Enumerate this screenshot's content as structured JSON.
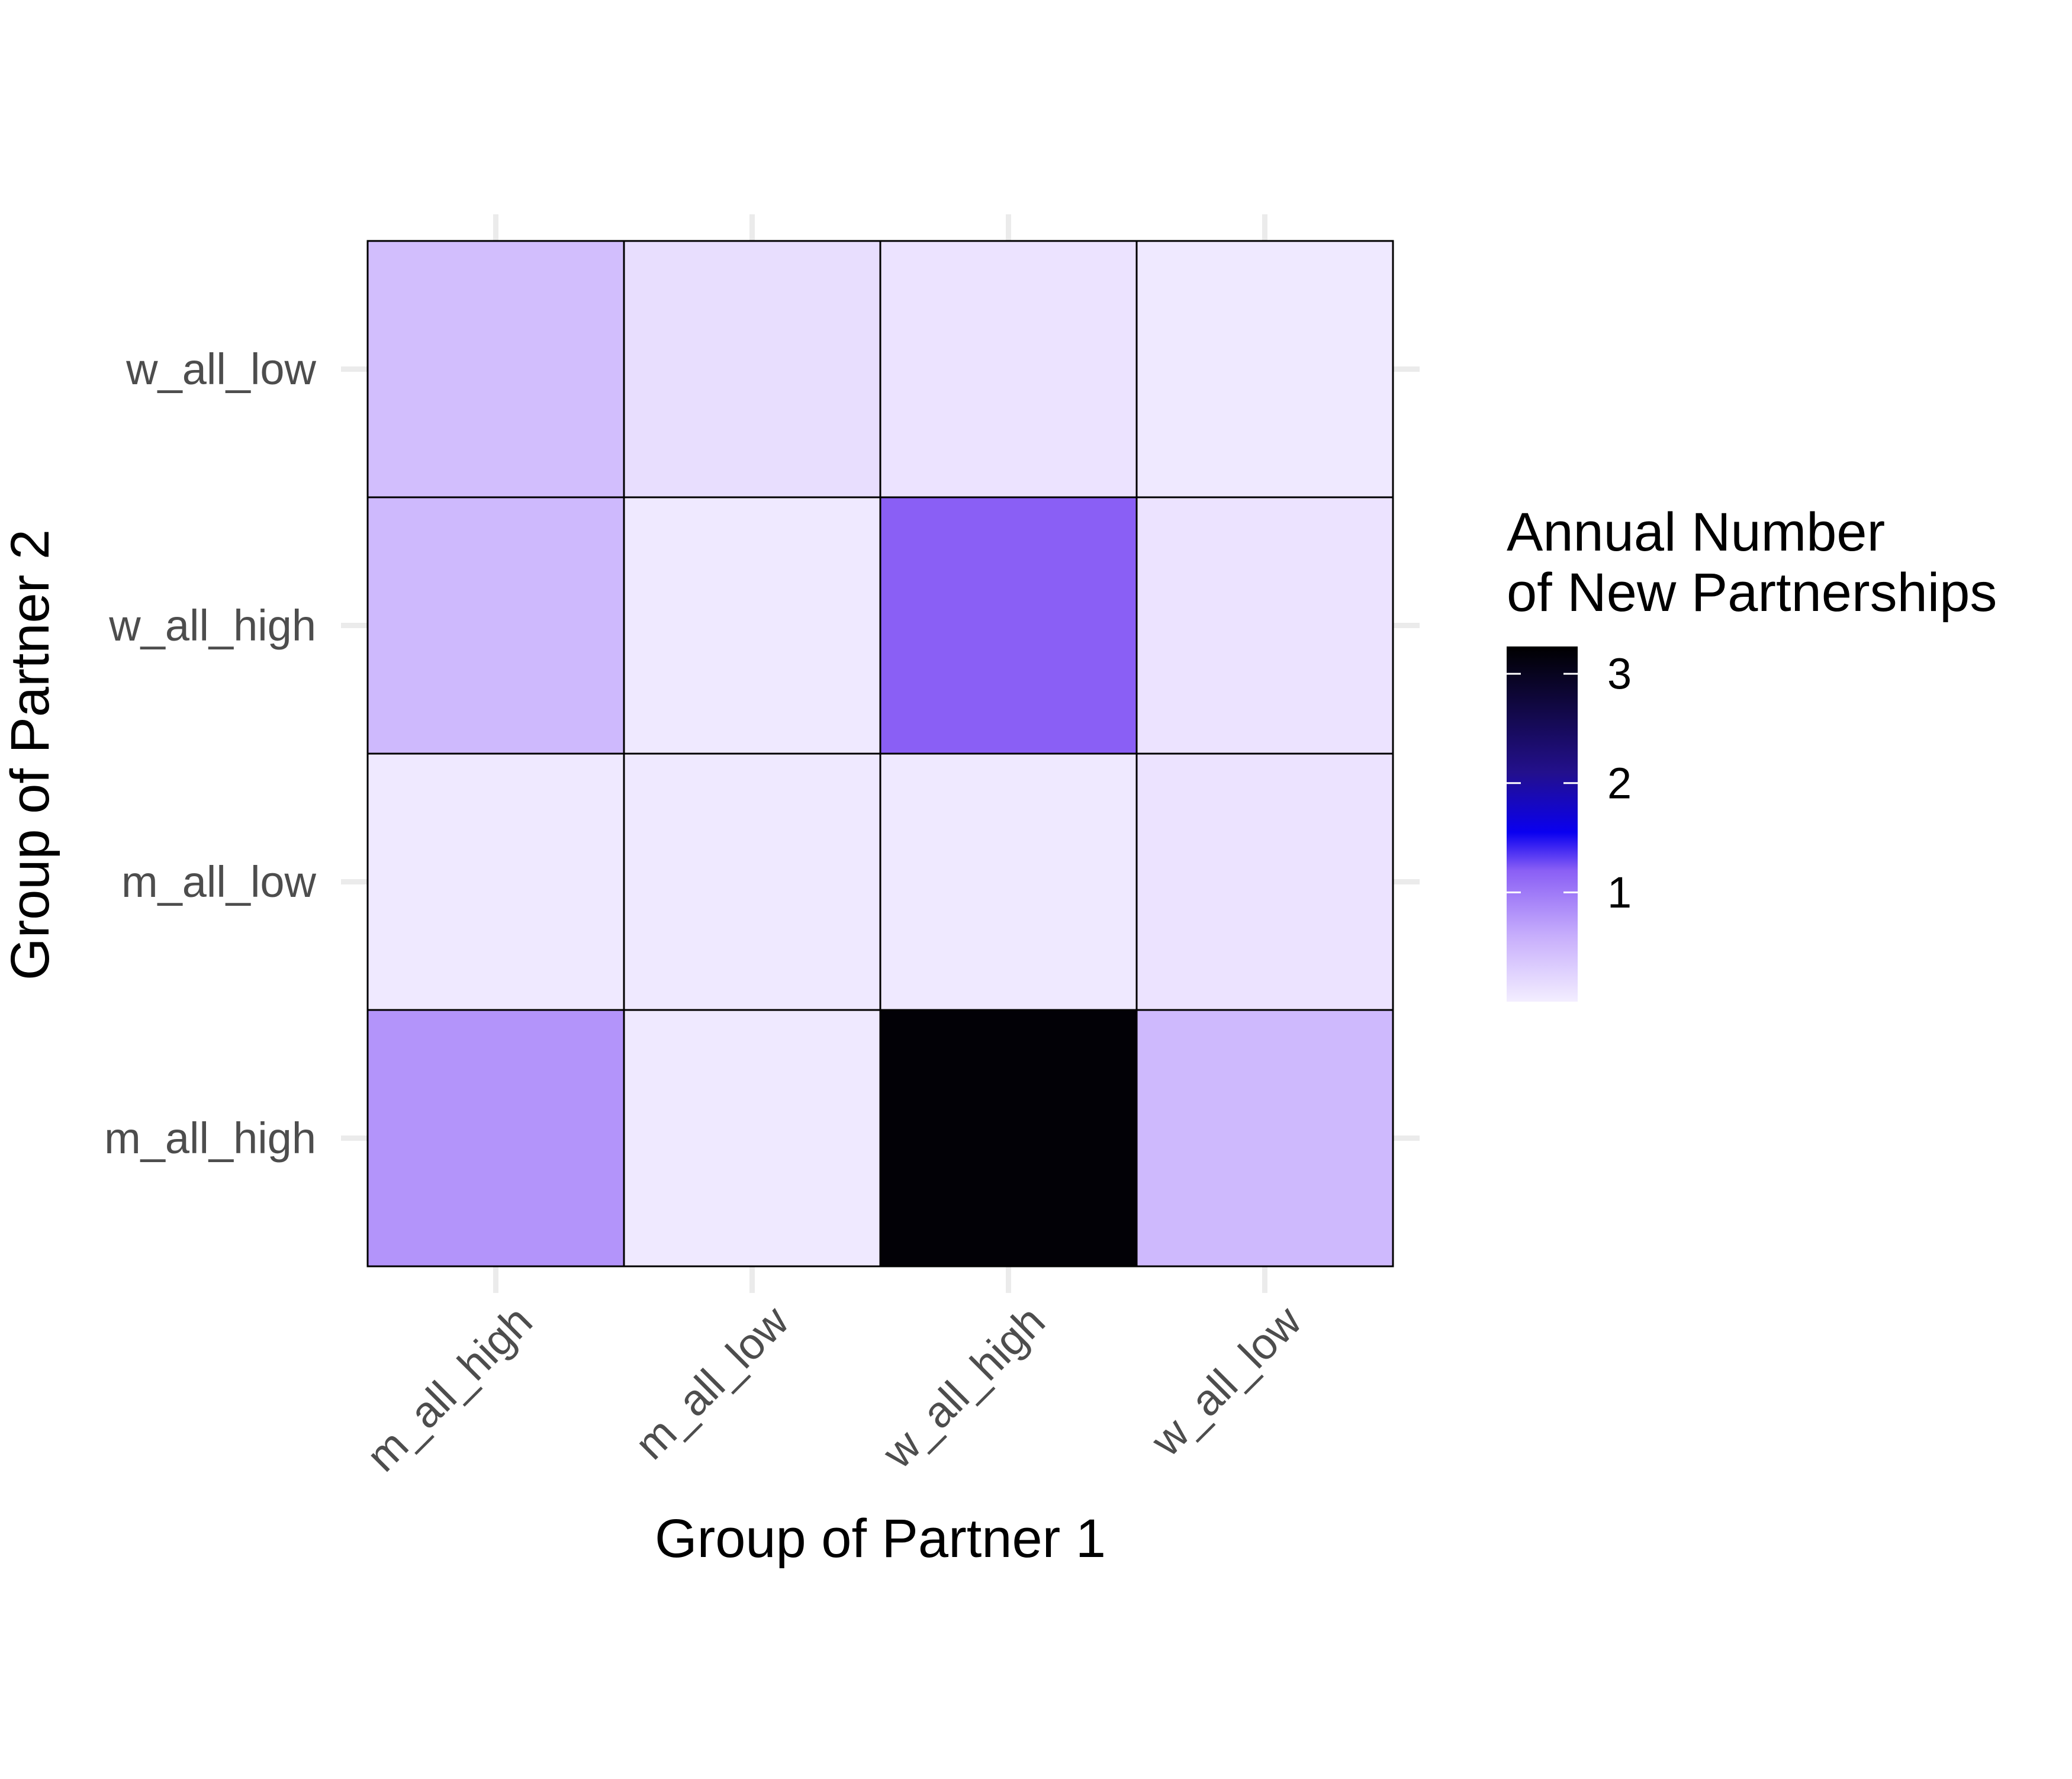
{
  "chart_data": {
    "type": "heatmap",
    "title": "",
    "xlabel": "Group of Partner 1",
    "ylabel": "Group of Partner 2",
    "x_categories": [
      "m_all_high",
      "m_all_low",
      "w_all_high",
      "w_all_low"
    ],
    "y_categories": [
      "m_all_high",
      "m_all_low",
      "w_all_high",
      "w_all_low"
    ],
    "values": [
      [
        0.8,
        0.05,
        0.5,
        0.45
      ],
      [
        0.05,
        0.05,
        0.05,
        0.15
      ],
      [
        3.2,
        0.05,
        1.2,
        0.1
      ],
      [
        0.5,
        0.1,
        0.1,
        0.05
      ]
    ],
    "value_axis": "values[x_index][y_index]",
    "legend": {
      "title_line1": "Annual Number",
      "title_line2": "of New Partnerships",
      "ticks": [
        1,
        2,
        3
      ],
      "tick_labels": [
        "1",
        "2",
        "3"
      ],
      "range": [
        0,
        3.25
      ],
      "position": "right"
    },
    "color_scale": {
      "stops": [
        {
          "value": 0,
          "color": "#f3eeff"
        },
        {
          "value": 0.6,
          "color": "#c7aefc"
        },
        {
          "value": 1.2,
          "color": "#8a5ff5"
        },
        {
          "value": 1.55,
          "color": "#0a00f0"
        },
        {
          "value": 2.1,
          "color": "#23108c"
        },
        {
          "value": 3.25,
          "color": "#000000"
        }
      ]
    },
    "grid": true,
    "tile_border": "#000000",
    "gridline_color": "#ebebeb",
    "axis_text_color": "#4d4d4d",
    "title_text_color": "#000000"
  }
}
